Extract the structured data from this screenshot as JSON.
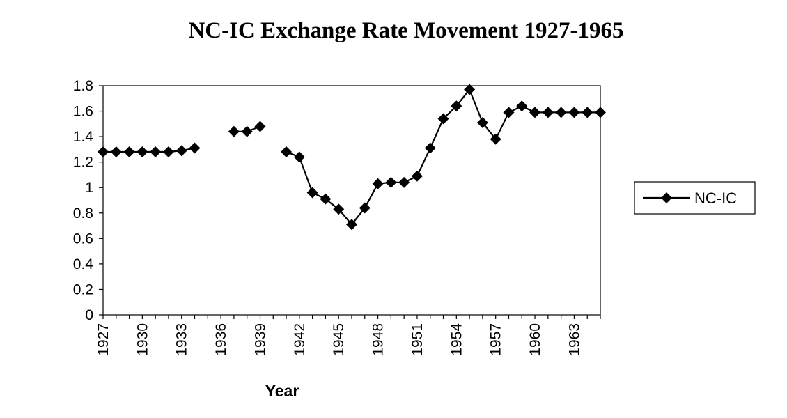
{
  "chart_data": {
    "type": "line",
    "title": "NC-IC Exchange Rate Movement 1927-1965",
    "xlabel": "Year",
    "ylabel": "",
    "ylim": [
      0,
      1.8
    ],
    "yticks": [
      "0",
      "0.2",
      "0.4",
      "0.6",
      "0.8",
      "1",
      "1.2",
      "1.4",
      "1.6",
      "1.8"
    ],
    "xlim": [
      1927,
      1965
    ],
    "xticks": [
      "1927",
      "1930",
      "1933",
      "1936",
      "1939",
      "1942",
      "1945",
      "1948",
      "1951",
      "1954",
      "1957",
      "1960",
      "1963"
    ],
    "grid": false,
    "legend_position": "right",
    "series": [
      {
        "name": "NC-IC",
        "color": "#000000",
        "marker": "diamond",
        "points": [
          [
            1927,
            1.28
          ],
          [
            1928,
            1.28
          ],
          [
            1929,
            1.28
          ],
          [
            1930,
            1.28
          ],
          [
            1931,
            1.28
          ],
          [
            1932,
            1.28
          ],
          [
            1933,
            1.29
          ],
          [
            1934,
            1.31
          ],
          [
            1937,
            1.44
          ],
          [
            1938,
            1.44
          ],
          [
            1939,
            1.48
          ],
          [
            1941,
            1.28
          ],
          [
            1942,
            1.24
          ],
          [
            1943,
            0.96
          ],
          [
            1944,
            0.91
          ],
          [
            1945,
            0.83
          ],
          [
            1946,
            0.71
          ],
          [
            1947,
            0.84
          ],
          [
            1948,
            1.03
          ],
          [
            1949,
            1.04
          ],
          [
            1950,
            1.04
          ],
          [
            1951,
            1.09
          ],
          [
            1952,
            1.31
          ],
          [
            1953,
            1.54
          ],
          [
            1954,
            1.64
          ],
          [
            1955,
            1.77
          ],
          [
            1956,
            1.51
          ],
          [
            1957,
            1.38
          ],
          [
            1958,
            1.59
          ],
          [
            1959,
            1.64
          ],
          [
            1960,
            1.59
          ],
          [
            1961,
            1.59
          ],
          [
            1962,
            1.59
          ],
          [
            1963,
            1.59
          ],
          [
            1964,
            1.59
          ],
          [
            1965,
            1.59
          ]
        ]
      }
    ]
  }
}
